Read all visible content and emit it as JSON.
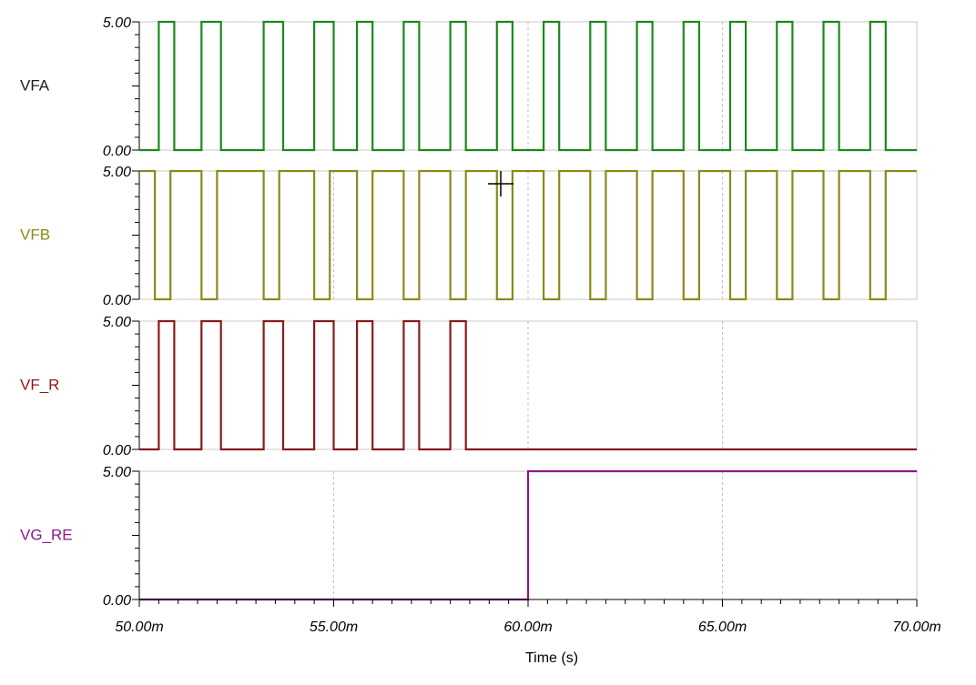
{
  "chart_data": {
    "type": "line",
    "xlabel": "Time (s)",
    "xlim": [
      0.05,
      0.07
    ],
    "x_ticks": [
      {
        "value": 0.05,
        "label": "50.00m"
      },
      {
        "value": 0.055,
        "label": "55.00m"
      },
      {
        "value": 0.06,
        "label": "60.00m"
      },
      {
        "value": 0.065,
        "label": "65.00m"
      },
      {
        "value": 0.07,
        "label": "70.00m"
      }
    ],
    "grid": true,
    "series": [
      {
        "name": "VFA",
        "color": "#1a8a1a",
        "ylim": [
          0,
          5
        ],
        "y_ticks": [
          "5.00",
          "0.00"
        ],
        "x": [
          0.05,
          0.0505,
          0.0505,
          0.0509,
          0.0509,
          0.0516,
          0.0516,
          0.0521,
          0.0521,
          0.0532,
          0.0532,
          0.0537,
          0.0537,
          0.0545,
          0.0545,
          0.055,
          0.055,
          0.0556,
          0.0556,
          0.056,
          0.056,
          0.0568,
          0.0568,
          0.0572,
          0.0572,
          0.058,
          0.058,
          0.0584,
          0.0584,
          0.0592,
          0.0592,
          0.0596,
          0.0596,
          0.0604,
          0.0604,
          0.0608,
          0.0608,
          0.0616,
          0.0616,
          0.062,
          0.062,
          0.0628,
          0.0628,
          0.0632,
          0.0632,
          0.064,
          0.064,
          0.0644,
          0.0644,
          0.0652,
          0.0652,
          0.0656,
          0.0656,
          0.0664,
          0.0664,
          0.0668,
          0.0668,
          0.0676,
          0.0676,
          0.068,
          0.068,
          0.0688,
          0.0688,
          0.0692,
          0.0692,
          0.07
        ],
        "values": [
          0,
          0,
          5,
          5,
          0,
          0,
          5,
          5,
          0,
          0,
          5,
          5,
          0,
          0,
          5,
          5,
          0,
          0,
          5,
          5,
          0,
          0,
          5,
          5,
          0,
          0,
          5,
          5,
          0,
          0,
          5,
          5,
          0,
          0,
          5,
          5,
          0,
          0,
          5,
          5,
          0,
          0,
          5,
          5,
          0,
          0,
          5,
          5,
          0,
          0,
          5,
          5,
          0,
          0,
          5,
          5,
          0,
          0,
          5,
          5,
          0,
          0,
          5,
          5,
          0,
          0
        ]
      },
      {
        "name": "VFB",
        "color": "#8a8a1a",
        "ylim": [
          0,
          5
        ],
        "y_ticks": [
          "5.00",
          "0.00"
        ],
        "x": [
          0.05,
          0.0504,
          0.0504,
          0.0508,
          0.0508,
          0.0516,
          0.0516,
          0.052,
          0.052,
          0.0532,
          0.0532,
          0.0536,
          0.0536,
          0.0545,
          0.0545,
          0.0549,
          0.0549,
          0.0556,
          0.0556,
          0.056,
          0.056,
          0.0568,
          0.0568,
          0.0572,
          0.0572,
          0.058,
          0.058,
          0.0584,
          0.0584,
          0.0592,
          0.0592,
          0.0596,
          0.0596,
          0.0604,
          0.0604,
          0.0608,
          0.0608,
          0.0616,
          0.0616,
          0.062,
          0.062,
          0.0628,
          0.0628,
          0.0632,
          0.0632,
          0.064,
          0.064,
          0.0644,
          0.0644,
          0.0652,
          0.0652,
          0.0656,
          0.0656,
          0.0664,
          0.0664,
          0.0668,
          0.0668,
          0.0676,
          0.0676,
          0.068,
          0.068,
          0.0688,
          0.0688,
          0.0692,
          0.0692,
          0.07
        ],
        "values": [
          5,
          5,
          0,
          0,
          5,
          5,
          0,
          0,
          5,
          5,
          0,
          0,
          5,
          5,
          0,
          0,
          5,
          5,
          0,
          0,
          5,
          5,
          0,
          0,
          5,
          5,
          0,
          0,
          5,
          5,
          0,
          0,
          5,
          5,
          0,
          0,
          5,
          5,
          0,
          0,
          5,
          5,
          0,
          0,
          5,
          5,
          0,
          0,
          5,
          5,
          0,
          0,
          5,
          5,
          0,
          0,
          5,
          5,
          0,
          0,
          5,
          5,
          0,
          0,
          5,
          5
        ]
      },
      {
        "name": "VF_R",
        "color": "#8a1a1a",
        "ylim": [
          0,
          5
        ],
        "y_ticks": [
          "5.00",
          "0.00"
        ],
        "x": [
          0.05,
          0.0505,
          0.0505,
          0.0509,
          0.0509,
          0.0516,
          0.0516,
          0.0521,
          0.0521,
          0.0532,
          0.0532,
          0.0537,
          0.0537,
          0.0545,
          0.0545,
          0.055,
          0.055,
          0.0556,
          0.0556,
          0.056,
          0.056,
          0.0568,
          0.0568,
          0.0572,
          0.0572,
          0.058,
          0.058,
          0.0584,
          0.0584,
          0.0592,
          0.0592,
          0.07
        ],
        "values": [
          0,
          0,
          5,
          5,
          0,
          0,
          5,
          5,
          0,
          0,
          5,
          5,
          0,
          0,
          5,
          5,
          0,
          0,
          5,
          5,
          0,
          0,
          5,
          5,
          0,
          0,
          5,
          5,
          0,
          0,
          0,
          0
        ]
      },
      {
        "name": "VG_RE",
        "color": "#8a1a8a",
        "ylim": [
          0,
          5
        ],
        "y_ticks": [
          "5.00",
          "0.00"
        ],
        "x": [
          0.05,
          0.06,
          0.06,
          0.07
        ],
        "values": [
          0,
          0,
          5,
          5
        ]
      }
    ]
  }
}
